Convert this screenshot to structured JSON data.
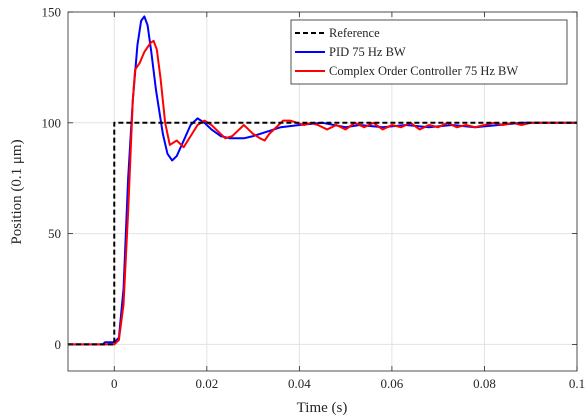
{
  "chart_data": {
    "type": "line",
    "xlabel": "Time (s)",
    "ylabel": "Position (0.1 μm)",
    "xlim": [
      -0.01,
      0.1
    ],
    "ylim": [
      -12,
      150
    ],
    "xticks": [
      0,
      0.02,
      0.04,
      0.06,
      0.08,
      0.1
    ],
    "xtick_labels": [
      "0",
      "0.02",
      "0.04",
      "0.06",
      "0.08",
      "0.1"
    ],
    "yticks": [
      0,
      50,
      100,
      150
    ],
    "ytick_labels": [
      "0",
      "50",
      "100",
      "150"
    ],
    "grid": true,
    "legend_position": "top-right",
    "series": [
      {
        "name": "Reference",
        "color": "#000000",
        "dash": "dashed",
        "points": [
          [
            -0.01,
            0
          ],
          [
            0,
            0
          ],
          [
            0,
            100
          ],
          [
            0.1,
            100
          ]
        ]
      },
      {
        "name": "PID 75 Hz BW",
        "color": "#0000ff",
        "dash": "solid",
        "points": [
          [
            -0.01,
            0
          ],
          [
            -0.0025,
            0
          ],
          [
            -0.002,
            1
          ],
          [
            0.0,
            1
          ],
          [
            0.001,
            3
          ],
          [
            0.002,
            25
          ],
          [
            0.003,
            75
          ],
          [
            0.004,
            110
          ],
          [
            0.005,
            135
          ],
          [
            0.0058,
            146
          ],
          [
            0.0065,
            148
          ],
          [
            0.0072,
            144
          ],
          [
            0.008,
            132
          ],
          [
            0.009,
            115
          ],
          [
            0.0105,
            95
          ],
          [
            0.0115,
            86
          ],
          [
            0.0125,
            83
          ],
          [
            0.0135,
            85
          ],
          [
            0.015,
            92
          ],
          [
            0.0165,
            99
          ],
          [
            0.018,
            102
          ],
          [
            0.0195,
            100
          ],
          [
            0.021,
            97
          ],
          [
            0.023,
            94
          ],
          [
            0.025,
            93
          ],
          [
            0.028,
            93
          ],
          [
            0.03,
            94
          ],
          [
            0.033,
            96
          ],
          [
            0.036,
            98
          ],
          [
            0.04,
            99
          ],
          [
            0.045,
            100
          ],
          [
            0.05,
            98
          ],
          [
            0.053,
            99
          ],
          [
            0.058,
            98
          ],
          [
            0.063,
            99
          ],
          [
            0.068,
            98
          ],
          [
            0.073,
            99
          ],
          [
            0.078,
            98
          ],
          [
            0.083,
            99
          ],
          [
            0.088,
            100
          ],
          [
            0.093,
            100
          ],
          [
            0.097,
            100
          ],
          [
            0.1,
            100
          ]
        ]
      },
      {
        "name": "Complex Order Controller 75 Hz BW",
        "color": "#ff0000",
        "dash": "solid",
        "points": [
          [
            -0.01,
            0
          ],
          [
            0.0,
            0
          ],
          [
            0.001,
            2
          ],
          [
            0.002,
            18
          ],
          [
            0.003,
            60
          ],
          [
            0.004,
            110
          ],
          [
            0.0045,
            124
          ],
          [
            0.0055,
            127
          ],
          [
            0.0065,
            132
          ],
          [
            0.0078,
            136
          ],
          [
            0.0085,
            137
          ],
          [
            0.0092,
            133
          ],
          [
            0.01,
            120
          ],
          [
            0.011,
            100
          ],
          [
            0.012,
            90
          ],
          [
            0.0135,
            92
          ],
          [
            0.015,
            89
          ],
          [
            0.0165,
            94
          ],
          [
            0.018,
            99
          ],
          [
            0.0195,
            101
          ],
          [
            0.021,
            99
          ],
          [
            0.0225,
            96
          ],
          [
            0.024,
            93
          ],
          [
            0.0255,
            94
          ],
          [
            0.027,
            97
          ],
          [
            0.028,
            99
          ],
          [
            0.029,
            97
          ],
          [
            0.03,
            95
          ],
          [
            0.0315,
            93
          ],
          [
            0.0325,
            92
          ],
          [
            0.0335,
            95
          ],
          [
            0.035,
            98
          ],
          [
            0.0365,
            101
          ],
          [
            0.038,
            101
          ],
          [
            0.0395,
            100
          ],
          [
            0.041,
            99
          ],
          [
            0.0425,
            100
          ],
          [
            0.044,
            99
          ],
          [
            0.046,
            97
          ],
          [
            0.048,
            99
          ],
          [
            0.05,
            97
          ],
          [
            0.052,
            100
          ],
          [
            0.054,
            98
          ],
          [
            0.056,
            100
          ],
          [
            0.058,
            97
          ],
          [
            0.06,
            99
          ],
          [
            0.062,
            98
          ],
          [
            0.064,
            100
          ],
          [
            0.066,
            97
          ],
          [
            0.068,
            99
          ],
          [
            0.07,
            98
          ],
          [
            0.072,
            100
          ],
          [
            0.074,
            98
          ],
          [
            0.076,
            99
          ],
          [
            0.078,
            98
          ],
          [
            0.08,
            99
          ],
          [
            0.082,
            100
          ],
          [
            0.084,
            99
          ],
          [
            0.086,
            100
          ],
          [
            0.088,
            99
          ],
          [
            0.09,
            100
          ],
          [
            0.092,
            100
          ],
          [
            0.095,
            100
          ],
          [
            0.098,
            100
          ],
          [
            0.1,
            100
          ]
        ]
      }
    ]
  }
}
